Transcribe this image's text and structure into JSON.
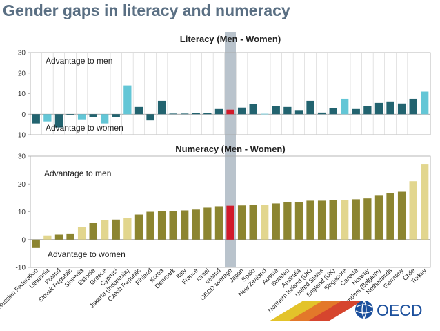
{
  "slide": {
    "title": "Gender gaps in literacy and numeracy"
  },
  "colors": {
    "literacy_dark": "#22636f",
    "literacy_light": "#63c6d6",
    "numeracy_dark": "#8c8530",
    "numeracy_light": "#e2d68e",
    "highlight": "#d11a2a",
    "highlight_band": "#b9c3cc",
    "footer_yellow": "#e3c32a",
    "footer_orange": "#e3782a",
    "footer_red": "#d6452e",
    "oecd_blue": "#1b4f9c"
  },
  "logo": {
    "text": "OECD"
  },
  "chart_data": [
    {
      "type": "bar",
      "title": "Literacy (Men - Women)",
      "ylim": [
        -10,
        30
      ],
      "yticks": [
        -10,
        0,
        10,
        20,
        30
      ],
      "annotations": {
        "top": "Advantage to men",
        "bottom": "Advantage to women"
      },
      "categories": [
        "Russian Federation",
        "Lithuania",
        "Poland",
        "Slovak Republic",
        "Slovenia",
        "Estonia",
        "Greece",
        "Cyprus¹",
        "Jakarta (Indonesia)",
        "Czech Republic",
        "Finland",
        "Korea",
        "Denmark",
        "Italy",
        "France",
        "Israel",
        "Ireland",
        "OECD average",
        "Japan",
        "Spain",
        "New Zealand",
        "Austria",
        "Sweden",
        "Australia",
        "Northern Ireland (UK)",
        "United States",
        "England (UK)",
        "Singapore",
        "Canada",
        "Norway",
        "Flanders (Belgium)",
        "Netherlands",
        "Germany",
        "Chile",
        "Turkey"
      ],
      "values": [
        -4.5,
        -3.5,
        -6.5,
        -0.5,
        -2.5,
        -1.5,
        -4.5,
        -1.5,
        14,
        3.5,
        -3,
        6.5,
        0.3,
        0.3,
        0.5,
        0.5,
        2.5,
        2.2,
        3.2,
        4.8,
        0.2,
        4,
        3.5,
        2,
        6.5,
        0.8,
        3,
        7.5,
        2.5,
        4,
        5.5,
        6.2,
        5.2,
        7.5,
        11
      ],
      "highlight_category": "OECD average",
      "light_categories": [
        "Lithuania",
        "Slovenia",
        "Greece",
        "Jakarta (Indonesia)",
        "New Zealand",
        "Singapore",
        "Turkey"
      ]
    },
    {
      "type": "bar",
      "title": "Numeracy (Men - Women)",
      "ylim": [
        -10,
        30
      ],
      "yticks": [
        -10,
        0,
        10,
        20,
        30
      ],
      "annotations": {
        "top": "Advantage to men",
        "bottom": "Advantage to women"
      },
      "categories": [
        "Russian Federation",
        "Lithuania",
        "Poland",
        "Slovak Republic",
        "Slovenia",
        "Estonia",
        "Greece",
        "Cyprus¹",
        "Jakarta (Indonesia)",
        "Czech Republic",
        "Finland",
        "Korea",
        "Denmark",
        "Italy",
        "France",
        "Israel",
        "Ireland",
        "OECD average",
        "Japan",
        "Spain",
        "New Zealand",
        "Austria",
        "Sweden",
        "Australia",
        "Northern Ireland (UK)",
        "United States",
        "England (UK)",
        "Singapore",
        "Canada",
        "Norway",
        "Flanders (Belgium)",
        "Netherlands",
        "Germany",
        "Chile",
        "Turkey"
      ],
      "values": [
        -3,
        1.5,
        1.8,
        2.2,
        4.5,
        6,
        7,
        7.2,
        7.8,
        9,
        10,
        10.2,
        10.2,
        10.5,
        10.8,
        11.5,
        12,
        12.2,
        12.3,
        12.5,
        12.5,
        13,
        13.5,
        13.5,
        14,
        14,
        14.2,
        14.3,
        14.5,
        14.8,
        16,
        16.8,
        17.2,
        21,
        27
      ],
      "highlight_category": "OECD average",
      "light_categories": [
        "Lithuania",
        "Slovenia",
        "Greece",
        "Jakarta (Indonesia)",
        "New Zealand",
        "Singapore",
        "Chile",
        "Turkey"
      ]
    }
  ]
}
